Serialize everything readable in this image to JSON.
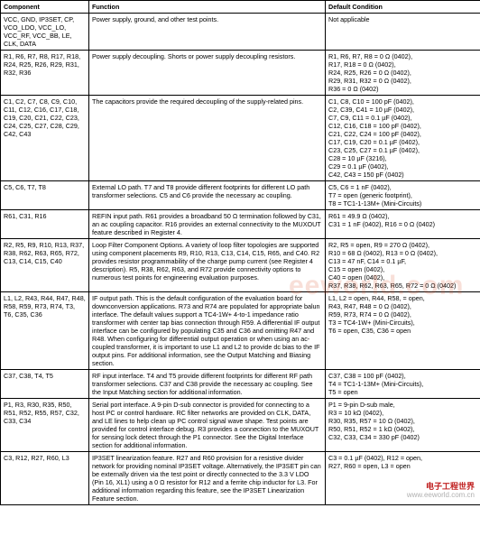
{
  "table": {
    "headers": [
      "Component",
      "Function",
      "Default Condition"
    ],
    "rows": [
      {
        "component": "VCC, GND, IP3SET, CP, VCO_LDO, VCC_LO, VCC_RF, VCC_BB, LE, CLK, DATA",
        "function": "Power supply, ground, and other test points.",
        "default": "Not applicable"
      },
      {
        "component": "R1, R6, R7, R8, R17, R18, R24, R25, R26, R29, R31, R32, R36",
        "function": "Power supply decoupling. Shorts or power supply decoupling resistors.",
        "default": "R1, R6, R7, R8 = 0 Ω (0402),\nR17, R18 = 0 Ω (0402),\nR24, R25, R26 = 0 Ω (0402),\nR29, R31, R32 = 0 Ω (0402),\nR36 = 0 Ω (0402)"
      },
      {
        "component": "C1, C2, C7, C8, C9, C10, C11, C12, C16, C17, C18, C19, C20, C21, C22, C23, C24, C25, C27, C28, C29, C42, C43",
        "function": "The capacitors provide the required decoupling of the supply-related pins.",
        "default": "C1, C8, C10 = 100 pF (0402),\nC2, C39, C41 = 10 µF (0402),\nC7, C9, C11 = 0.1 µF (0402),\nC12, C16, C18 = 100 pF (0402),\nC21, C22, C24 = 100 pF (0402),\nC17, C19, C20 = 0.1 µF (0402),\nC23, C25, C27 = 0.1 µF (0402),\nC28 = 10 µF (3216),\nC29 = 0.1 µF (0402),\nC42, C43 = 150 pF (0402)"
      },
      {
        "component": "C5, C6, T7, T8",
        "function": "External LO path. T7 and T8 provide different footprints for different LO path transformer selections. C5 and C6 provide the necessary ac coupling.",
        "default": "C5, C6 = 1 nF (0402),\nT7 = open (generic footprint),\nT8 = TC1-1-13M+ (Mini-Circuits)"
      },
      {
        "component": "R61, C31, R16",
        "function": "REFIN input path. R61 provides a broadband 50 Ω termination followed by C31, an ac coupling capacitor. R16 provides an external connectivity to the MUXOUT feature described in Register 4.",
        "default": "R61 = 49.9 Ω (0402),\nC31 = 1 nF (0402), R16 = 0 Ω (0402)"
      },
      {
        "component": "R2, R5, R9, R10, R13, R37, R38, R62, R63, R65, R72, C13, C14, C15, C40",
        "function": "Loop Filter Component Options. A variety of loop filter topologies are supported using component placements R9, R10, R13, C13, C14, C15, R65, and C40. R2 provides resistor programmability of the charge pump current (see Register 4 description). R5, R38, R62, R63, and R72 provide connectivity options to numerous test points for engineering evaluation purposes.",
        "default": "R2, R5 = open, R9 = 270 Ω (0402),\nR10 = 68 Ω (0402), R13 = 0 Ω (0402),\nC13 = 47 nF, C14 = 0.1 µF,\nC15 = open (0402),\nC40 = open (0402),\nR37, R38, R62, R63, R65, R72 = 0 Ω (0402)"
      },
      {
        "component": "L1, L2, R43, R44, R47, R48, R58, R59, R73, R74, T3, T6, C35, C36",
        "function": "IF output path. This is the default configuration of the evaluation board for downconversion applications. R73 and R74 are populated for appropriate balun interface. The default values support a TC4-1W+ 4-to-1 impedance ratio transformer with center tap bias connection through R59. A differential IF output interface can be configured by populating C35 and C36 and omitting R47 and R48. When configuring for differential output operation or when using an ac-coupled transformer, it is important to use L1 and L2 to provide dc bias to the IF output pins. For additional information, see the Output Matching and Biasing section.",
        "default": "L1, L2 = open, R44, R58, = open,\nR43, R47, R48 = 0 Ω (0402),\nR59, R73, R74 = 0 Ω (0402),\nT3 = TC4-1W+ (Mini-Circuits),\nT6 = open, C35, C36 = open"
      },
      {
        "component": "C37, C38, T4, T5",
        "function": "RF input interface. T4 and T5 provide different footprints for different RF path transformer selections. C37 and C38 provide the necessary ac coupling. See the Input Matching section for additional information.",
        "default": "C37, C38 = 100 pF (0402),\nT4 = TC1-1-13M+ (Mini-Circuits),\nT5 = open"
      },
      {
        "component": "P1, R3, R30, R35, R50, R51, R52, R55, R57, C32, C33, C34",
        "function": "Serial port interface. A 9-pin D-sub connector is provided for connecting to a host PC or control hardware. RC filter networks are provided on CLK, DATA, and LE lines to help clean up PC control signal wave shape. Test points are provided for control interface debug. R3 provides a connection to the MUXOUT for sensing lock detect through the P1 connector. See the Digital Interface section for additional information.",
        "default": "P1 = 9-pin D-sub male,\nR3 = 10 kΩ (0402),\nR30, R35, R57 = 10 Ω (0402),\nR50, R51, R52 = 1 kΩ (0402),\nC32, C33, C34 = 330 pF (0402)"
      },
      {
        "component": "C3, R12, R27, R60, L3",
        "function": "IP3SET linearization feature. R27 and R60 provision for a resistive divider network for providing nominal IP3SET voltage. Alternatively, the IP3SET pin can be externally driven via the test point or directly connected to the 3.3 V LDO (Pin 16, XL1) using a 0 Ω resistor for R12 and a ferrite chip inductor for L3. For additional information regarding this feature, see the IP3SET Linearization Feature section.",
        "default": "C3 = 0.1 µF (0402), R12 = open,\nR27, R60 = open, L3 = open"
      }
    ]
  },
  "watermark": "eeworld.com",
  "footer": {
    "ch": "电子工程世界",
    "url": "www.eeworld.com.cn"
  },
  "colors": {
    "text": "#000000",
    "border": "#000000",
    "background": "#ffffff",
    "watermark": "rgba(214,80,40,0.18)"
  }
}
